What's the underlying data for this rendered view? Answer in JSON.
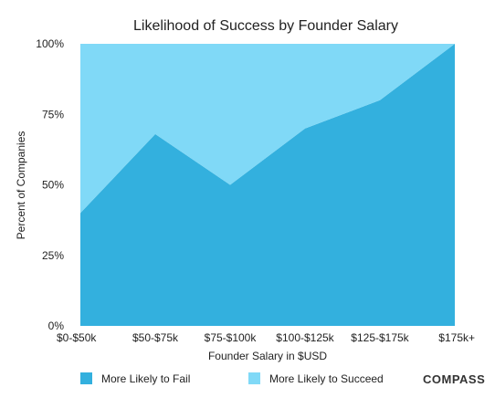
{
  "chart_data": {
    "type": "area",
    "title": "Likelihood of Success by Founder Salary",
    "xlabel": "Founder Salary in $USD",
    "ylabel": "Percent of Companies",
    "categories": [
      "$0-$50k",
      "$50-$75k",
      "$75-$100k",
      "$100-$125k",
      "$125-$175k",
      "$175k+"
    ],
    "ylim": [
      0,
      100
    ],
    "yticks": [
      "0%",
      "25%",
      "50%",
      "75%",
      "100%"
    ],
    "stacked": true,
    "series": [
      {
        "name": "More Likely to Fail",
        "color": "#33b0de",
        "values": [
          40,
          68,
          50,
          70,
          80,
          100
        ]
      },
      {
        "name": "More Likely to Succeed",
        "color": "#80d9f7",
        "values": [
          60,
          32,
          50,
          30,
          20,
          0
        ]
      }
    ],
    "legend_position": "bottom",
    "grid": false
  },
  "branding": {
    "logo_text": "COMPASS"
  }
}
